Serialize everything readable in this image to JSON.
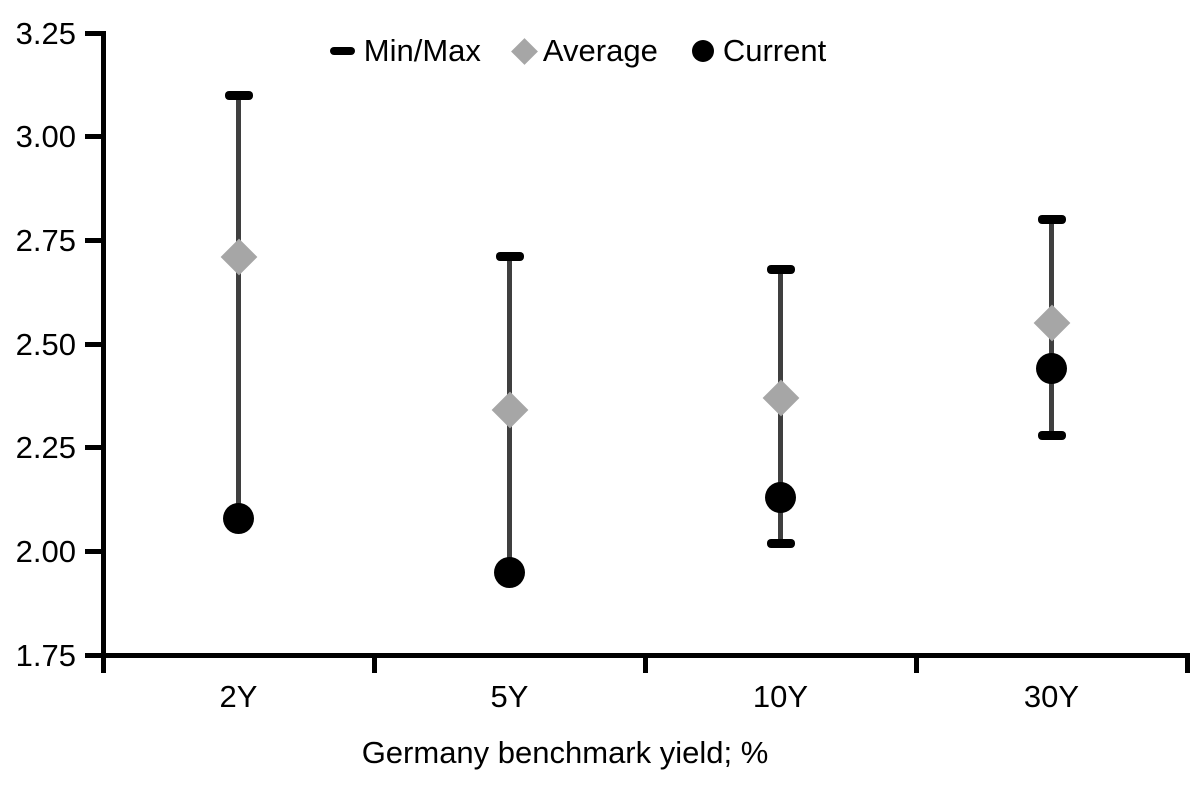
{
  "chart_data": {
    "type": "scatter",
    "subtype": "min-max-range-with-markers",
    "title": "",
    "xlabel": "Germany benchmark yield; %",
    "ylabel": "",
    "categories": [
      "2Y",
      "5Y",
      "10Y",
      "30Y"
    ],
    "series": [
      {
        "name": "Min/Max",
        "marker": "dash",
        "role": "range",
        "min": [
          2.08,
          1.95,
          2.02,
          2.28
        ],
        "max": [
          3.1,
          2.71,
          2.68,
          2.8
        ]
      },
      {
        "name": "Average",
        "marker": "diamond",
        "values": [
          2.71,
          2.34,
          2.37,
          2.55
        ]
      },
      {
        "name": "Current",
        "marker": "circle",
        "values": [
          2.08,
          1.95,
          2.13,
          2.44
        ]
      }
    ],
    "legend": [
      "Min/Max",
      "Average",
      "Current"
    ],
    "legend_position": "top-center",
    "ylim": [
      1.75,
      3.25
    ],
    "ytick_step": 0.25,
    "ytick_labels": [
      "1.75",
      "2.00",
      "2.25",
      "2.50",
      "2.75",
      "3.00",
      "3.25"
    ],
    "grid": false
  },
  "colors": {
    "black": "#000000",
    "average_gray": "#a6a6a6",
    "stick": "#3f3f3f",
    "background": "#ffffff"
  }
}
